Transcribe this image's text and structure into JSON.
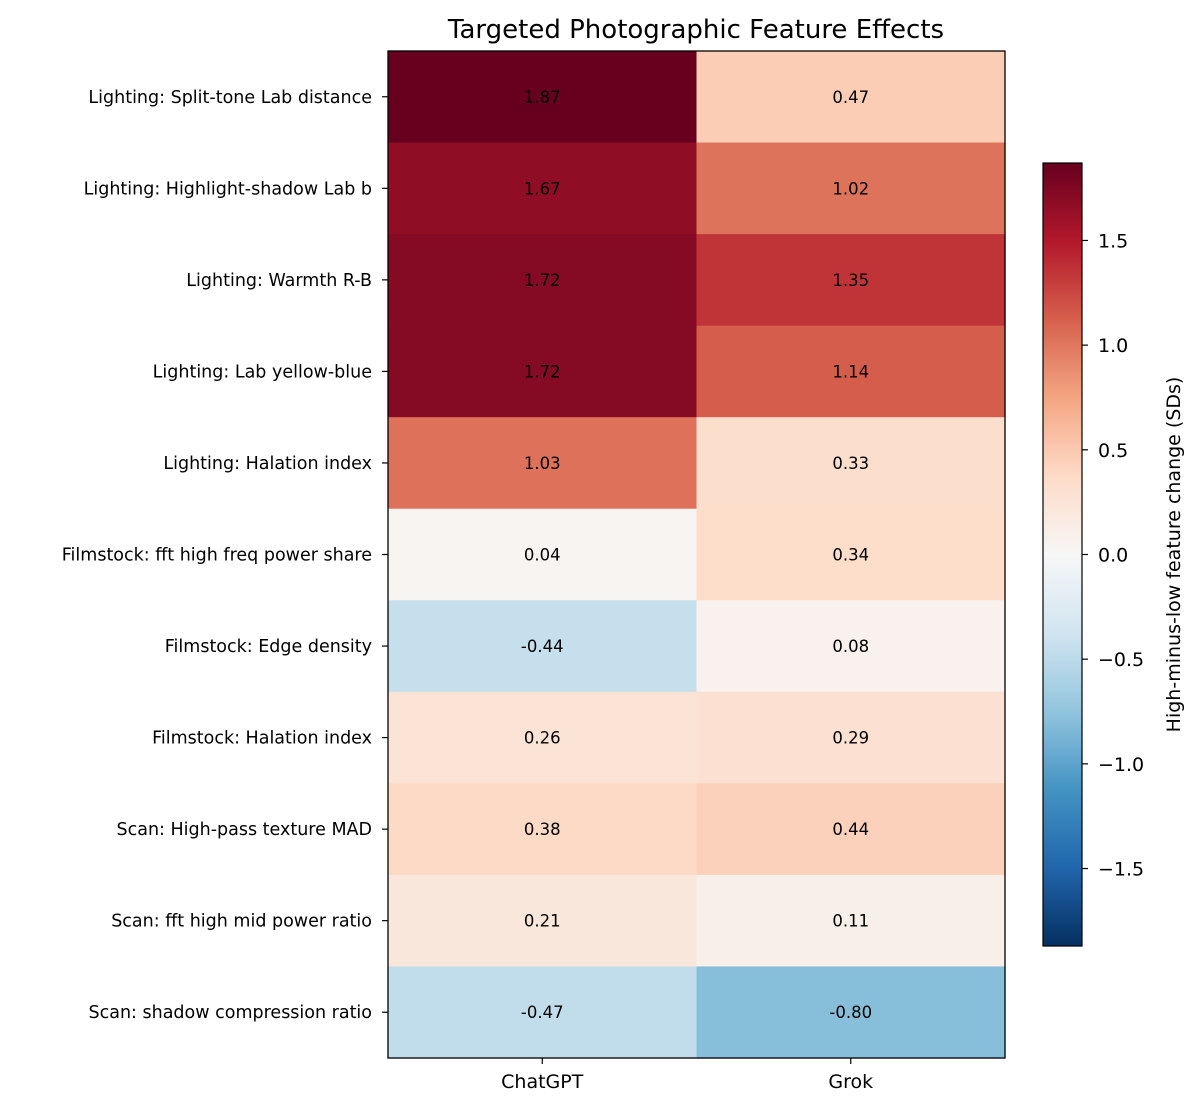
{
  "chart_data": {
    "type": "heatmap",
    "title": "Targeted Photographic Feature Effects",
    "columns": [
      "ChatGPT",
      "Grok"
    ],
    "rows": [
      "Lighting: Split-tone Lab distance",
      "Lighting: Highlight-shadow Lab b",
      "Lighting: Warmth R-B",
      "Lighting: Lab yellow-blue",
      "Lighting: Halation index",
      "Filmstock: fft high freq power share",
      "Filmstock: Edge density",
      "Filmstock: Halation index",
      "Scan: High-pass texture MAD",
      "Scan: fft high mid power ratio",
      "Scan: shadow compression ratio"
    ],
    "values": [
      [
        1.87,
        0.47
      ],
      [
        1.67,
        1.02
      ],
      [
        1.72,
        1.35
      ],
      [
        1.72,
        1.14
      ],
      [
        1.03,
        0.33
      ],
      [
        0.04,
        0.34
      ],
      [
        -0.44,
        0.08
      ],
      [
        0.26,
        0.29
      ],
      [
        0.38,
        0.44
      ],
      [
        0.21,
        0.11
      ],
      [
        -0.47,
        -0.8
      ]
    ],
    "value_labels": [
      [
        "1.87",
        "0.47"
      ],
      [
        "1.67",
        "1.02"
      ],
      [
        "1.72",
        "1.35"
      ],
      [
        "1.72",
        "1.14"
      ],
      [
        "1.03",
        "0.33"
      ],
      [
        "0.04",
        "0.34"
      ],
      [
        "-0.44",
        "0.08"
      ],
      [
        "0.26",
        "0.29"
      ],
      [
        "0.38",
        "0.44"
      ],
      [
        "0.21",
        "0.11"
      ],
      [
        "-0.47",
        "-0.80"
      ]
    ],
    "colormap": "RdBu_r",
    "vmin": -1.87,
    "vmax": 1.87,
    "colorbar": {
      "label": "High-minus-low feature change (SDs)",
      "ticks": [
        1.5,
        1.0,
        0.5,
        0.0,
        -0.5,
        -1.0,
        -1.5
      ],
      "tick_labels": [
        "1.5",
        "1.0",
        "0.5",
        "0.0",
        "−0.5",
        "−1.0",
        "−1.5"
      ],
      "placement": "right"
    }
  }
}
